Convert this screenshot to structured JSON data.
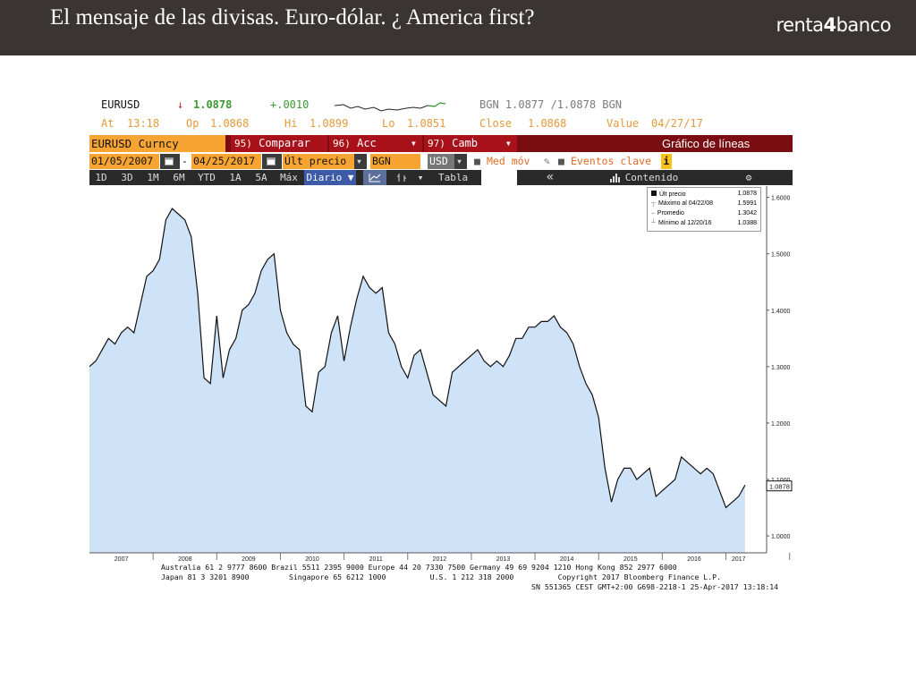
{
  "slide": {
    "title": "El mensaje de las divisas. Euro-dólar. ¿ America first?",
    "logo_text_a": "renta",
    "logo_text_b": "4",
    "logo_text_c": "banco"
  },
  "terminal": {
    "ticker": "EURUSD",
    "arrow": "↓",
    "last": "1.0878",
    "change": "+.0010",
    "bgn_quote": "BGN  1.0877 /1.0878  BGN",
    "at_label": "At",
    "at_value": "13:18",
    "op_label": "Op",
    "op_value": "1.0868",
    "hi_label": "Hi",
    "hi_value": "1.0899",
    "lo_label": "Lo",
    "lo_value": "1.0851",
    "close_label": "Close",
    "close_value": "1.0868",
    "value_label": "Value",
    "value_value": "04/27/17",
    "security": "EURUSD Curncy",
    "menu_compare_num": "95)",
    "menu_compare": "Comparar",
    "menu_acc_num": "96)",
    "menu_acc": "Acc",
    "menu_camb_num": "97)",
    "menu_camb": "Camb",
    "chart_kind": "Gráfico de líneas",
    "start_date": "01/05/2007",
    "dash": "-",
    "end_date": "04/25/2017",
    "price_field": "Últ precio",
    "source": "BGN",
    "currency": "USD",
    "moving_avg": "Med móv",
    "events": "Eventos clave",
    "info": "i",
    "ranges": [
      "1D",
      "3D",
      "1M",
      "6M",
      "YTD",
      "1A",
      "5A",
      "Máx"
    ],
    "frequency": "Diario ▼",
    "table": "Tabla",
    "back": "«",
    "content": "Contenido",
    "settings": "⚙"
  },
  "chart_data": {
    "type": "line",
    "title": "",
    "xlabel": "",
    "ylabel": "",
    "ylim": [
      0.97,
      1.62
    ],
    "xlim": [
      2007.0,
      2017.4
    ],
    "x_ticks": [
      "2007",
      "2008",
      "2009",
      "2010",
      "2011",
      "2012",
      "2013",
      "2014",
      "2015",
      "2016",
      "2017"
    ],
    "y_ticks": [
      "1.0000",
      "1.1000",
      "1.2000",
      "1.3000",
      "1.4000",
      "1.5000",
      "1.6000"
    ],
    "last_value_label": "1.0878",
    "grid": false,
    "fill": "area",
    "colors": {
      "line": "#111111",
      "fill": "#cfe3f8"
    },
    "legend": {
      "placement": "top-right",
      "entries": [
        {
          "label": "Últ precio",
          "value": "1.0878"
        },
        {
          "label": "Máximo al 04/22/08",
          "value": "1.5991"
        },
        {
          "label": "Promedio",
          "value": "1.3042"
        },
        {
          "label": "Mínimo al 12/20/16",
          "value": "1.0388"
        }
      ]
    },
    "x": [
      2007.0,
      2007.1,
      2007.2,
      2007.3,
      2007.4,
      2007.5,
      2007.6,
      2007.7,
      2007.8,
      2007.9,
      2008.0,
      2008.1,
      2008.2,
      2008.3,
      2008.4,
      2008.5,
      2008.6,
      2008.7,
      2008.8,
      2008.9,
      2009.0,
      2009.1,
      2009.2,
      2009.3,
      2009.4,
      2009.5,
      2009.6,
      2009.7,
      2009.8,
      2009.9,
      2010.0,
      2010.1,
      2010.2,
      2010.3,
      2010.4,
      2010.5,
      2010.6,
      2010.7,
      2010.8,
      2010.9,
      2011.0,
      2011.1,
      2011.2,
      2011.3,
      2011.4,
      2011.5,
      2011.6,
      2011.7,
      2011.8,
      2011.9,
      2012.0,
      2012.1,
      2012.2,
      2012.3,
      2012.4,
      2012.5,
      2012.6,
      2012.7,
      2012.8,
      2012.9,
      2013.0,
      2013.1,
      2013.2,
      2013.3,
      2013.4,
      2013.5,
      2013.6,
      2013.7,
      2013.8,
      2013.9,
      2014.0,
      2014.1,
      2014.2,
      2014.3,
      2014.4,
      2014.5,
      2014.6,
      2014.7,
      2014.8,
      2014.9,
      2015.0,
      2015.1,
      2015.2,
      2015.3,
      2015.4,
      2015.5,
      2015.6,
      2015.7,
      2015.8,
      2015.9,
      2016.0,
      2016.1,
      2016.2,
      2016.3,
      2016.4,
      2016.5,
      2016.6,
      2016.7,
      2016.8,
      2016.9,
      2017.0,
      2017.1,
      2017.2,
      2017.3
    ],
    "values": [
      1.3,
      1.31,
      1.33,
      1.35,
      1.34,
      1.36,
      1.37,
      1.36,
      1.41,
      1.46,
      1.47,
      1.49,
      1.56,
      1.58,
      1.57,
      1.56,
      1.53,
      1.43,
      1.28,
      1.27,
      1.39,
      1.28,
      1.33,
      1.35,
      1.4,
      1.41,
      1.43,
      1.47,
      1.49,
      1.5,
      1.4,
      1.36,
      1.34,
      1.33,
      1.23,
      1.22,
      1.29,
      1.3,
      1.36,
      1.39,
      1.31,
      1.37,
      1.42,
      1.46,
      1.44,
      1.43,
      1.44,
      1.36,
      1.34,
      1.3,
      1.28,
      1.32,
      1.33,
      1.29,
      1.25,
      1.24,
      1.23,
      1.29,
      1.3,
      1.31,
      1.32,
      1.33,
      1.31,
      1.3,
      1.31,
      1.3,
      1.32,
      1.35,
      1.35,
      1.37,
      1.37,
      1.38,
      1.38,
      1.39,
      1.37,
      1.36,
      1.34,
      1.3,
      1.27,
      1.25,
      1.21,
      1.12,
      1.06,
      1.1,
      1.12,
      1.12,
      1.1,
      1.11,
      1.12,
      1.07,
      1.08,
      1.09,
      1.1,
      1.14,
      1.13,
      1.12,
      1.11,
      1.12,
      1.11,
      1.08,
      1.05,
      1.06,
      1.07,
      1.09
    ]
  },
  "footer": {
    "line1": "Australia 61 2 9777 8600 Brazil 5511 2395 9000 Europe 44 20 7330 7500 Germany 49 69 9204 1210 Hong Kong 852 2977 6000",
    "line2": "Japan 81 3 3201 8900         Singapore 65 6212 1000          U.S. 1 212 318 2000          Copyright 2017 Bloomberg Finance L.P.",
    "line3": "                                                                                    SN 551365 CEST GMT+2:00 G698-2218-1 25-Apr-2017 13:18:14"
  }
}
